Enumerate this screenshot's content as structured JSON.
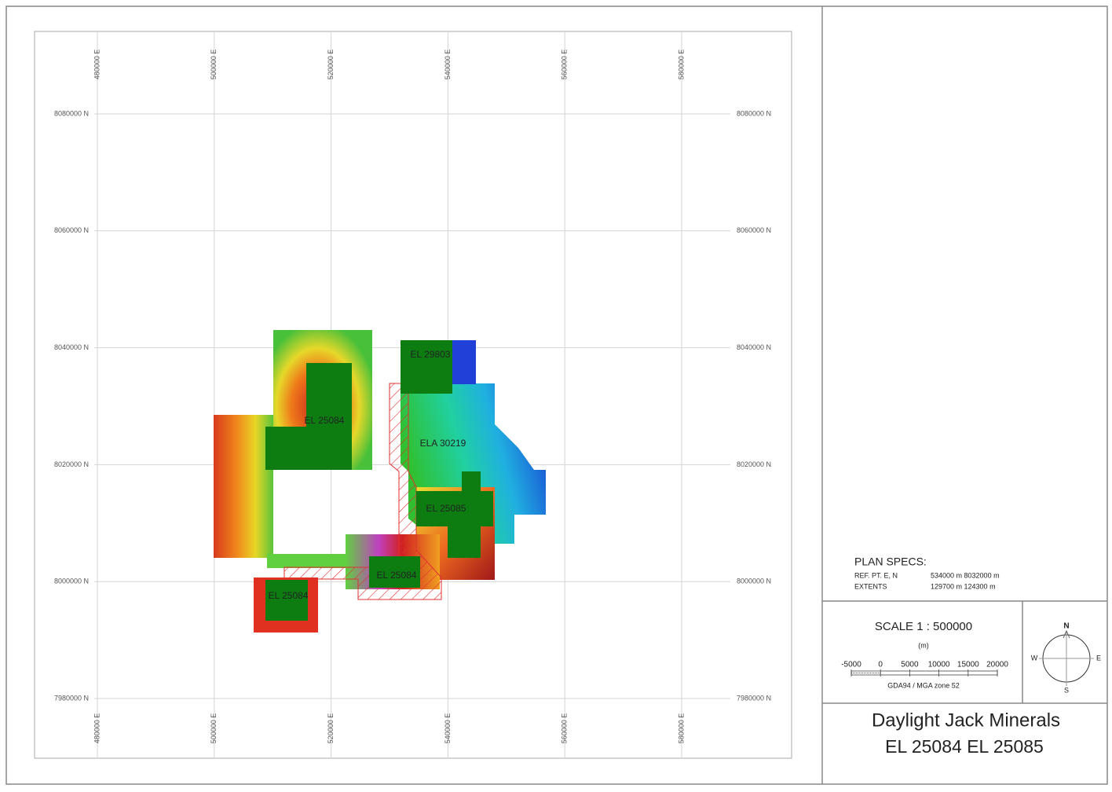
{
  "map": {
    "easting_labels": [
      "480000 E",
      "500000 E",
      "520000 E",
      "540000 E",
      "560000 E",
      "580000 E"
    ],
    "northing_labels": [
      "8080000 N",
      "8060000 N",
      "8040000 N",
      "8020000 N",
      "8000000 N",
      "7980000 N"
    ],
    "tenements": [
      "EL 29803",
      "EL 25084",
      "ELA 30219",
      "EL 25085",
      "EL 25084",
      "EL 25084"
    ]
  },
  "plan_specs": {
    "title": "PLAN SPECS:",
    "rows": [
      [
        "REF. PT. E, N",
        "534000 m 8032000 m"
      ],
      [
        "EXTENTS",
        "129700 m  124300 m"
      ]
    ]
  },
  "scale": {
    "title": "SCALE  1 : 500000",
    "unit": "(m)",
    "ticks": [
      "-5000",
      "0",
      "5000",
      "10000",
      "15000",
      "20000"
    ],
    "projection": "GDA94 / MGA zone 52"
  },
  "compass": {
    "north": "N",
    "east": "E",
    "south": "S",
    "west": "W"
  },
  "title_block": {
    "line1": "Daylight Jack Minerals",
    "line2": "EL 25084 EL 25085"
  }
}
